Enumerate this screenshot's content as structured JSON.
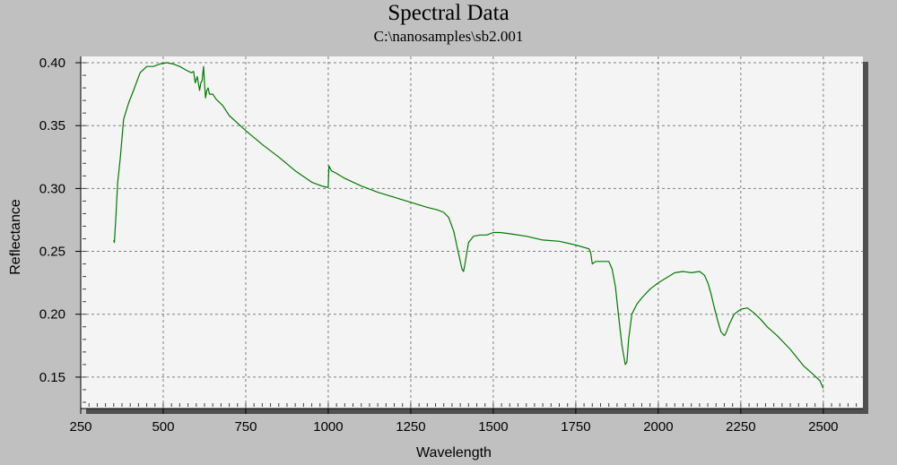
{
  "chart_data": {
    "type": "line",
    "title": "Spectral Data",
    "subtitle": "C:\\nanosamples\\sb2.001",
    "xlabel": "Wavelength",
    "ylabel": "Reflectance",
    "xlim": [
      250,
      2620
    ],
    "ylim": [
      0.125,
      0.405
    ],
    "x_ticks": [
      250,
      500,
      750,
      1000,
      1250,
      1500,
      1750,
      2000,
      2250,
      2500
    ],
    "x_tick_labels": [
      "250",
      "500",
      "750",
      "1000",
      "1250",
      "1500",
      "1750",
      "2000",
      "2250",
      "2500"
    ],
    "y_ticks": [
      0.15,
      0.2,
      0.25,
      0.3,
      0.35,
      0.4
    ],
    "y_tick_labels": [
      "0.15",
      "0.20",
      "0.25",
      "0.30",
      "0.35",
      "0.40"
    ],
    "grid": true,
    "colors": {
      "background": "#c0c0c0",
      "plot_area": "#f4f4f4",
      "line": "#007a00",
      "grid": "#808080"
    },
    "series": [
      {
        "x": [
          350,
          352,
          356,
          362,
          370,
          380,
          395,
          410,
          430,
          450,
          470,
          490,
          510,
          530,
          550,
          570,
          585,
          592,
          597,
          603,
          610,
          614,
          618,
          622,
          625,
          628,
          632,
          636,
          640,
          650,
          660,
          680,
          700,
          750,
          800,
          850,
          900,
          950,
          980,
          995,
          1000,
          1002,
          1010,
          1025,
          1050,
          1100,
          1150,
          1200,
          1250,
          1300,
          1330,
          1350,
          1365,
          1380,
          1395,
          1405,
          1410,
          1415,
          1425,
          1440,
          1460,
          1480,
          1500,
          1520,
          1550,
          1600,
          1650,
          1700,
          1750,
          1790,
          1795,
          1800,
          1810,
          1830,
          1850,
          1860,
          1870,
          1880,
          1890,
          1900,
          1905,
          1910,
          1920,
          1935,
          1950,
          1975,
          2000,
          2025,
          2050,
          2075,
          2100,
          2125,
          2140,
          2150,
          2160,
          2170,
          2180,
          2190,
          2200,
          2205,
          2215,
          2230,
          2250,
          2270,
          2290,
          2310,
          2330,
          2360,
          2400,
          2440,
          2470,
          2490,
          2500
        ],
        "y": [
          0.259,
          0.257,
          0.275,
          0.305,
          0.325,
          0.355,
          0.368,
          0.378,
          0.392,
          0.397,
          0.397,
          0.399,
          0.4,
          0.399,
          0.397,
          0.394,
          0.392,
          0.393,
          0.384,
          0.389,
          0.378,
          0.384,
          0.386,
          0.397,
          0.384,
          0.372,
          0.378,
          0.38,
          0.375,
          0.375,
          0.371,
          0.366,
          0.358,
          0.346,
          0.335,
          0.325,
          0.314,
          0.305,
          0.302,
          0.301,
          0.301,
          0.318,
          0.314,
          0.312,
          0.308,
          0.302,
          0.297,
          0.293,
          0.289,
          0.285,
          0.283,
          0.281,
          0.277,
          0.266,
          0.248,
          0.236,
          0.234,
          0.241,
          0.257,
          0.262,
          0.263,
          0.263,
          0.265,
          0.265,
          0.264,
          0.262,
          0.259,
          0.258,
          0.255,
          0.252,
          0.249,
          0.24,
          0.242,
          0.242,
          0.242,
          0.236,
          0.222,
          0.198,
          0.175,
          0.16,
          0.162,
          0.18,
          0.2,
          0.208,
          0.213,
          0.22,
          0.225,
          0.229,
          0.233,
          0.234,
          0.233,
          0.234,
          0.231,
          0.225,
          0.216,
          0.205,
          0.195,
          0.186,
          0.183,
          0.185,
          0.192,
          0.2,
          0.204,
          0.205,
          0.201,
          0.196,
          0.19,
          0.183,
          0.172,
          0.159,
          0.152,
          0.147,
          0.141
        ]
      }
    ]
  }
}
